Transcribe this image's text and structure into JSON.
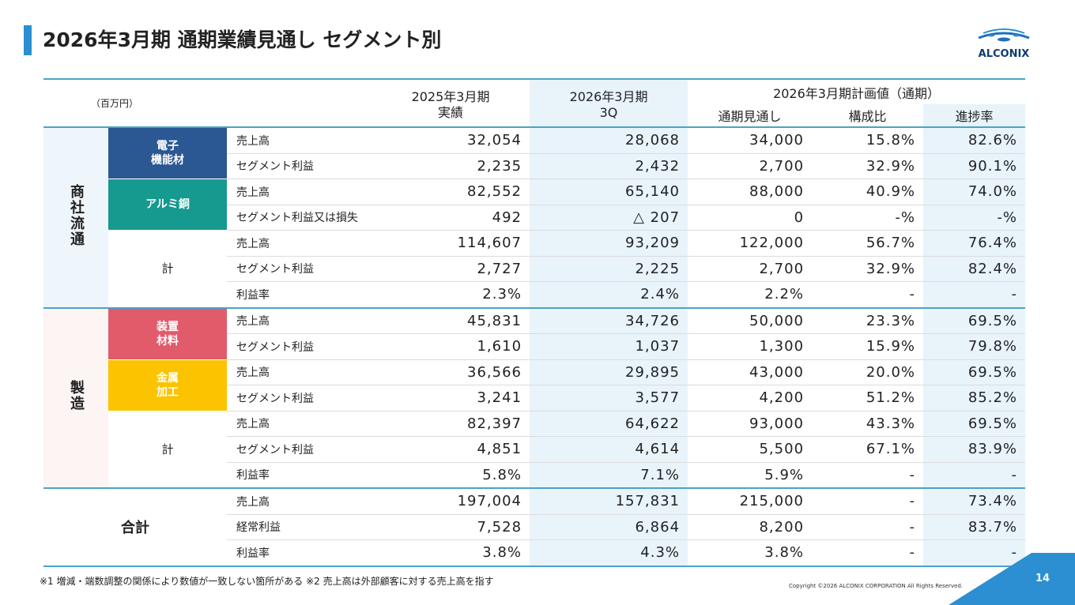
{
  "header": {
    "title": "2026年3月期 通期業績見通し セグメント別",
    "logo": "ALCONIX"
  },
  "table": {
    "unit": "（百万円）",
    "head": {
      "c1": "2025年3月期\n実績",
      "c2": "2026年3月期\n3Q",
      "plan": "2026年3月期計画値（通期）",
      "c3": "通期見通し",
      "c4": "構成比",
      "c5": "進捗率"
    },
    "groups": [
      {
        "label": "商社流通",
        "color": "#eef6fb",
        "segments": [
          {
            "name": "電子\n機能材",
            "color": "#2b5793",
            "rows": [
              [
                "売上高",
                "32,054",
                "28,068",
                "34,000",
                "15.8%",
                "82.6%"
              ],
              [
                "セグメント利益",
                "2,235",
                "2,432",
                "2,700",
                "32.9%",
                "90.1%"
              ]
            ]
          },
          {
            "name": "アルミ銅",
            "color": "#16998f",
            "rows": [
              [
                "売上高",
                "82,552",
                "65,140",
                "88,000",
                "40.9%",
                "74.0%"
              ],
              [
                "セグメント利益又は損失",
                "492",
                "△ 207",
                "0",
                "-%",
                "-%"
              ]
            ]
          },
          {
            "name": "計",
            "rows": [
              [
                "売上高",
                "114,607",
                "93,209",
                "122,000",
                "56.7%",
                "76.4%"
              ],
              [
                "セグメント利益",
                "2,727",
                "2,225",
                "2,700",
                "32.9%",
                "82.4%"
              ],
              [
                "利益率",
                "2.3%",
                "2.4%",
                "2.2%",
                "-",
                "-"
              ]
            ]
          }
        ]
      },
      {
        "label": "製造",
        "color": "#fdf4f4",
        "segments": [
          {
            "name": "装置\n材料",
            "color": "#e25b6b",
            "rows": [
              [
                "売上高",
                "45,831",
                "34,726",
                "50,000",
                "23.3%",
                "69.5%"
              ],
              [
                "セグメント利益",
                "1,610",
                "1,037",
                "1,300",
                "15.9%",
                "79.8%"
              ]
            ]
          },
          {
            "name": "金属\n加工",
            "color": "#fcc300",
            "rows": [
              [
                "売上高",
                "36,566",
                "29,895",
                "43,000",
                "20.0%",
                "69.5%"
              ],
              [
                "セグメント利益",
                "3,241",
                "3,577",
                "4,200",
                "51.2%",
                "85.2%"
              ]
            ]
          },
          {
            "name": "計",
            "rows": [
              [
                "売上高",
                "82,397",
                "64,622",
                "93,000",
                "43.3%",
                "69.5%"
              ],
              [
                "セグメント利益",
                "4,851",
                "4,614",
                "5,500",
                "67.1%",
                "83.9%"
              ],
              [
                "利益率",
                "5.8%",
                "7.1%",
                "5.9%",
                "-",
                "-"
              ]
            ]
          }
        ]
      },
      {
        "label": "合計",
        "color": "#ffffff",
        "segments": [
          {
            "rows": [
              [
                "売上高",
                "197,004",
                "157,831",
                "215,000",
                "-",
                "73.4%"
              ],
              [
                "経常利益",
                "7,528",
                "6,864",
                "8,200",
                "-",
                "83.7%"
              ],
              [
                "利益率",
                "3.8%",
                "4.3%",
                "3.8%",
                "-",
                "-"
              ]
            ]
          }
        ]
      }
    ]
  },
  "footer": {
    "notes": "※1 増減・端数調整の関係により数値が一致しない箇所がある ※2 売上高は外部顧客に対する売上高を指す",
    "copyright": "Copyright ©2026 ALCONIX CORPORATION All Rights Reserved.",
    "page": "14"
  }
}
